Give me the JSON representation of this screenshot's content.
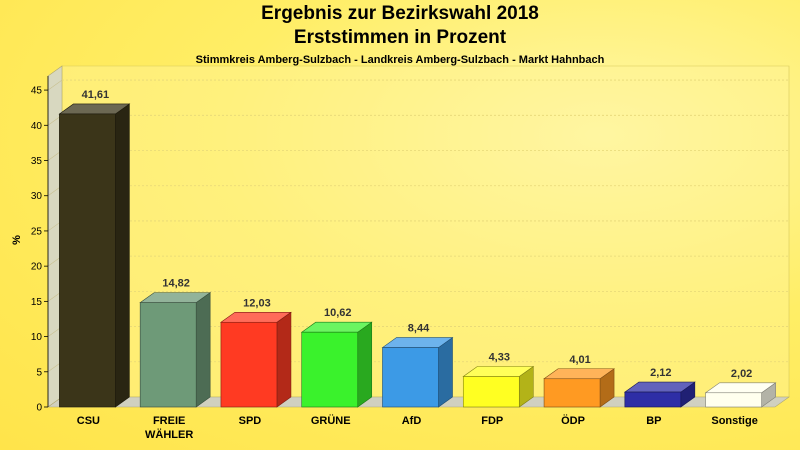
{
  "header": {
    "title_line1": "Ergebnis zur Bezirkswahl 2018",
    "title_line2": "Erststimmen in Prozent",
    "subtitle": "Stimmkreis Amberg-Sulzbach - Landkreis Amberg-Sulzbach - Markt Hahnbach"
  },
  "chart_data": {
    "type": "bar",
    "title": "Ergebnis zur Bezirkswahl 2018 Erststimmen in Prozent",
    "subtitle": "Stimmkreis Amberg-Sulzbach - Landkreis Amberg-Sulzbach - Markt Hahnbach",
    "ylabel": "%",
    "xlabel": "",
    "ylim": [
      0,
      47
    ],
    "yticks": [
      0,
      5,
      10,
      15,
      20,
      25,
      30,
      35,
      40,
      45
    ],
    "grid": true,
    "categories": [
      [
        "CSU"
      ],
      [
        "FREIE",
        "WÄHLER"
      ],
      [
        "SPD"
      ],
      [
        "GRÜNE"
      ],
      [
        "AfD"
      ],
      [
        "FDP"
      ],
      [
        "ÖDP"
      ],
      [
        "BP"
      ],
      [
        "Sonstige"
      ]
    ],
    "values": [
      41.61,
      14.82,
      12.03,
      10.62,
      8.44,
      4.33,
      4.01,
      2.12,
      2.02
    ],
    "value_labels": [
      "41,61",
      "14,82",
      "12,03",
      "10,62",
      "8,44",
      "4,33",
      "4,01",
      "2,12",
      "2,02"
    ],
    "colors": [
      "#3b3519",
      "#6e9a78",
      "#ff3a22",
      "#3af22c",
      "#3c9ae6",
      "#ffff22",
      "#ff9a22",
      "#2e2ea6",
      "#ffffee"
    ]
  }
}
